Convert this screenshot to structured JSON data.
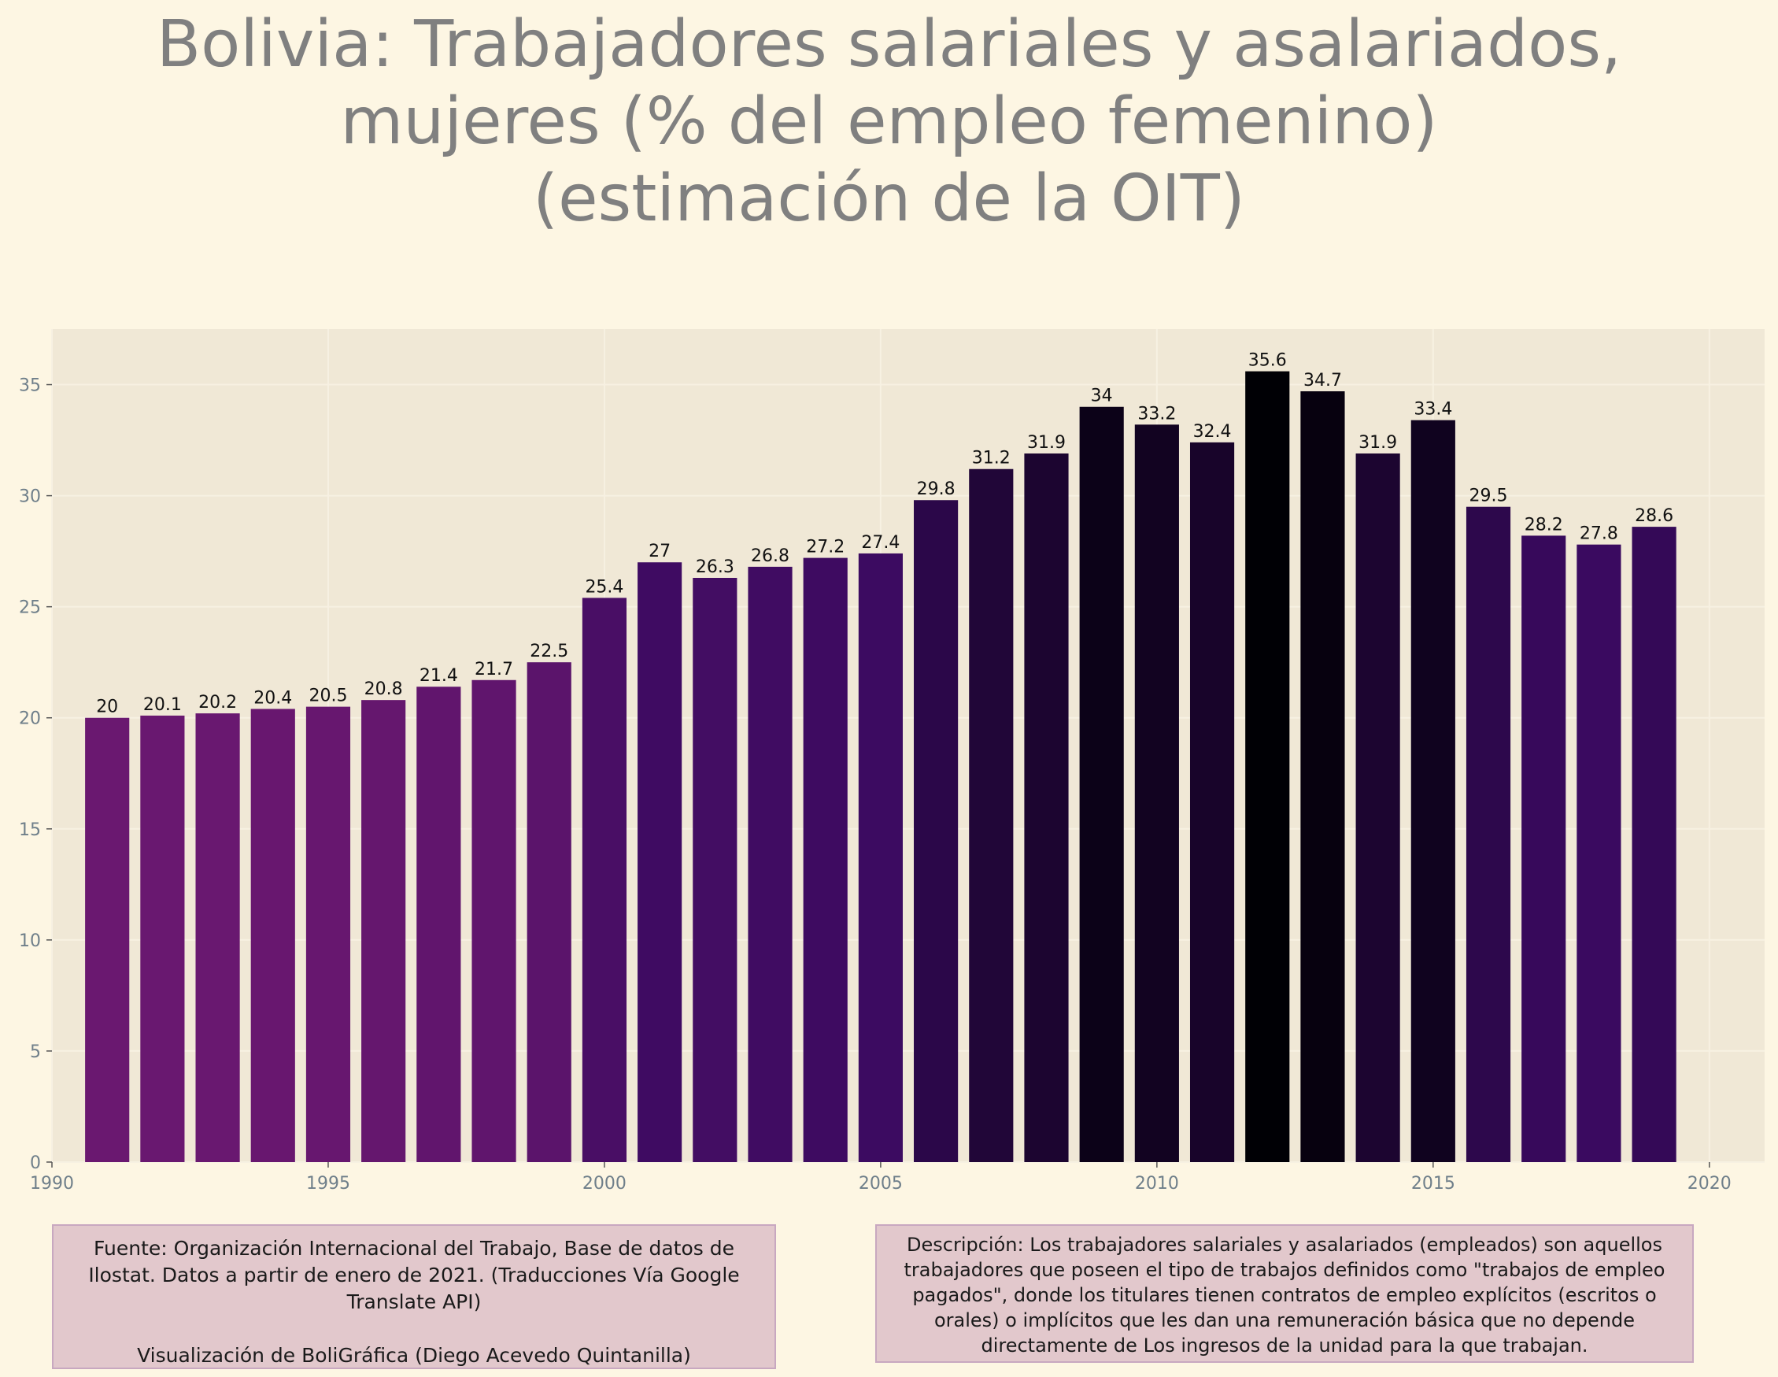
{
  "title_lines": [
    "Bolivia:  Trabajadores salariales y asalariados,",
    "mujeres (% del empleo femenino)",
    "(estimación de la OIT)"
  ],
  "chart_data": {
    "type": "bar",
    "x": [
      1991,
      1992,
      1993,
      1994,
      1995,
      1996,
      1997,
      1998,
      1999,
      2000,
      2001,
      2002,
      2003,
      2004,
      2005,
      2006,
      2007,
      2008,
      2009,
      2010,
      2011,
      2012,
      2013,
      2014,
      2015,
      2016,
      2017,
      2018,
      2019
    ],
    "values": [
      20,
      20.1,
      20.2,
      20.4,
      20.5,
      20.8,
      21.4,
      21.7,
      22.5,
      25.4,
      27,
      26.3,
      26.8,
      27.2,
      27.4,
      29.8,
      31.2,
      31.9,
      34,
      33.2,
      32.4,
      35.6,
      34.7,
      31.9,
      33.4,
      29.5,
      28.2,
      27.8,
      28.6
    ],
    "value_labels": [
      "20",
      "20.1",
      "20.2",
      "20.4",
      "20.5",
      "20.8",
      "21.4",
      "21.7",
      "22.5",
      "25.4",
      "27",
      "26.3",
      "26.8",
      "27.2",
      "27.4",
      "29.8",
      "31.2",
      "31.9",
      "34",
      "33.2",
      "32.4",
      "35.6",
      "34.7",
      "31.9",
      "33.4",
      "29.5",
      "28.2",
      "27.8",
      "28.6"
    ],
    "xlim": [
      1990,
      2021
    ],
    "ylim": [
      0,
      37.5
    ],
    "x_ticks": [
      "1990",
      "1995",
      "2000",
      "2005",
      "2010",
      "2015",
      "2020"
    ],
    "y_ticks": [
      "0",
      "5",
      "10",
      "15",
      "20",
      "25",
      "30",
      "35"
    ],
    "grid": true,
    "colors": {
      "plot_bg": "#f0e8d6",
      "page_bg": "#fdf6e3",
      "tick_text": "#6f7f8a",
      "label_text": "#111111",
      "bar_low": "#6a1870",
      "bar_high": "#000005"
    }
  },
  "source_box": {
    "text": "Fuente: Organización Internacional del Trabajo, Base de datos de Ilostat. Datos a partir de enero de 2021. (Traducciones Vía Google Translate API)",
    "credit": "Visualización de BoliGráfica (Diego Acevedo Quintanilla)"
  },
  "description_box": {
    "text": "Descripción: Los trabajadores salariales y asalariados (empleados) son aquellos trabajadores que poseen el tipo de trabajos definidos como \"trabajos de empleo pagados\", donde los titulares tienen contratos de empleo explícitos (escritos o orales) o implícitos que les dan una remuneración básica que no depende directamente de Los ingresos de la unidad para la que trabajan."
  }
}
